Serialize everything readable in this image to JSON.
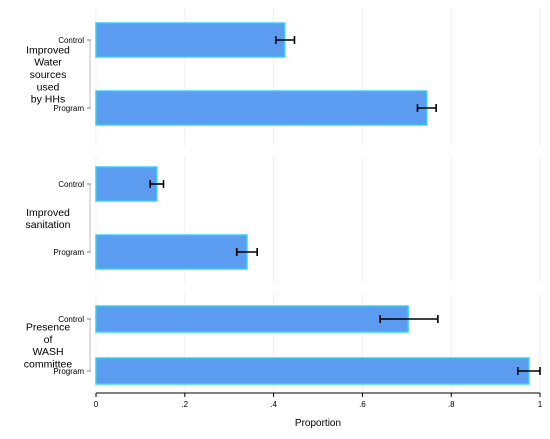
{
  "chart_data": {
    "type": "bar",
    "orientation": "horizontal",
    "xlabel": "Proportion",
    "xlim": [
      0,
      1
    ],
    "xticks": [
      {
        "value": 0,
        "label": "0"
      },
      {
        "value": 0.2,
        "label": ".2"
      },
      {
        "value": 0.4,
        "label": ".4"
      },
      {
        "value": 0.6,
        "label": ".6"
      },
      {
        "value": 0.8,
        "label": ".8"
      },
      {
        "value": 1,
        "label": "1"
      }
    ],
    "grid": true,
    "bar_color": "#5b9bf0",
    "bar_edge_color": "#38d0f0",
    "groups": [
      {
        "label_lines": [
          "Improved",
          "Water",
          "sources",
          "used",
          "by HHs"
        ],
        "bars": [
          {
            "category": "Control",
            "value": 0.425,
            "ci": [
              0.405,
              0.447
            ]
          },
          {
            "category": "Program",
            "value": 0.745,
            "ci": [
              0.724,
              0.766
            ]
          }
        ]
      },
      {
        "label_lines": [
          "Improved",
          "sanitation"
        ],
        "bars": [
          {
            "category": "Control",
            "value": 0.137,
            "ci": [
              0.122,
              0.152
            ]
          },
          {
            "category": "Program",
            "value": 0.34,
            "ci": [
              0.317,
              0.363
            ]
          }
        ]
      },
      {
        "label_lines": [
          "Presence",
          "of",
          "WASH",
          "committee"
        ],
        "bars": [
          {
            "category": "Control",
            "value": 0.703,
            "ci": [
              0.64,
              0.77
            ]
          },
          {
            "category": "Program",
            "value": 0.975,
            "ci": [
              0.95,
              1.0
            ]
          }
        ]
      }
    ]
  }
}
